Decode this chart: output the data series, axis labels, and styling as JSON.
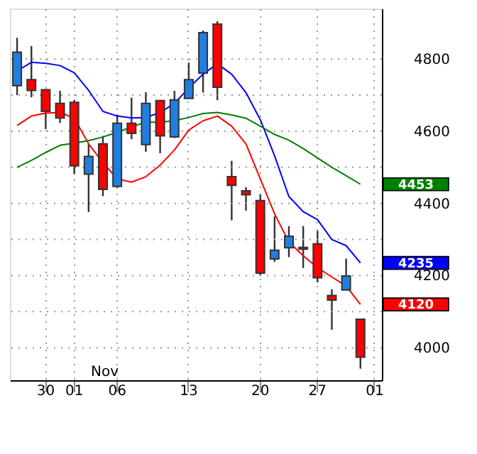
{
  "chart_data": {
    "type": "candlestick",
    "categories": [
      null,
      null,
      "30",
      null,
      "01",
      null,
      null,
      "06",
      null,
      null,
      null,
      null,
      "13",
      null,
      null,
      null,
      null,
      "20",
      null,
      null,
      null,
      "27",
      null,
      null,
      null,
      "01"
    ],
    "ohlc": [
      [
        4726,
        4859,
        4700,
        4819
      ],
      [
        4743,
        4836,
        4694,
        4713
      ],
      [
        4715,
        4715,
        4606,
        4655
      ],
      [
        4677,
        4712,
        4623,
        4637
      ],
      [
        4680,
        4687,
        4481,
        4504
      ],
      [
        4481,
        4565,
        4376,
        4530
      ],
      [
        4565,
        4587,
        4420,
        4439
      ],
      [
        4447,
        4646,
        4442,
        4622
      ],
      [
        4622,
        4693,
        4578,
        4594
      ],
      [
        4563,
        4708,
        4543,
        4677
      ],
      [
        4685,
        4686,
        4539,
        4587
      ],
      [
        4584,
        4712,
        4581,
        4687
      ],
      [
        4691,
        4790,
        4691,
        4743
      ],
      [
        4761,
        4879,
        4707,
        4873
      ],
      [
        4897,
        4905,
        4686,
        4722
      ],
      [
        4474,
        4518,
        4353,
        4450
      ],
      [
        4435,
        4445,
        4380,
        4424
      ],
      [
        4408,
        4425,
        4200,
        4207
      ],
      [
        4246,
        4364,
        4238,
        4270
      ],
      [
        4277,
        4337,
        4251,
        4309
      ],
      [
        4278,
        4337,
        4221,
        4273
      ],
      [
        4288,
        4324,
        4181,
        4194
      ],
      [
        4145,
        4162,
        4050,
        4132
      ],
      [
        4160,
        4247,
        4160,
        4199
      ],
      [
        4079,
        4079,
        3942,
        3974
      ],
      null
    ],
    "colors": [
      "#1e7fe0",
      "#ff0000",
      "#ff0000",
      "#ff0000",
      "#ff0000",
      "#1e7fe0",
      "#ff0000",
      "#1e7fe0",
      "#ff0000",
      "#1e7fe0",
      "#ff0000",
      "#1e7fe0",
      "#1e7fe0",
      "#1e7fe0",
      "#ff0000",
      "#ff0000",
      "#ff0000",
      "#ff0000",
      "#1e7fe0",
      "#1e7fe0",
      "#ff0000",
      "#ff0000",
      "#ff0000",
      "#1e7fe0",
      "#ff0000",
      null
    ],
    "series": [
      {
        "type": "line",
        "color": "#0000ff",
        "values": [
          4767,
          4791,
          4788,
          4782,
          4762,
          4713,
          4655,
          4642,
          4637,
          4638,
          4652,
          4677,
          4720,
          4758,
          4787,
          4758,
          4707,
          4632,
          4532,
          4419,
          4377,
          4355,
          4300,
          4283,
          4235,
          null
        ]
      },
      {
        "type": "line",
        "color": "#ff0000",
        "values": [
          4616,
          4642,
          4650,
          4652,
          4636,
          4565,
          4513,
          4468,
          4459,
          4474,
          4506,
          4548,
          4603,
          4629,
          4642,
          4614,
          4565,
          4468,
          4371,
          4293,
          4255,
          4222,
          4196,
          4171,
          4120,
          null
        ]
      },
      {
        "type": "line",
        "color": "#008000",
        "values": [
          4500,
          4519,
          4541,
          4561,
          4567,
          4574,
          4584,
          4597,
          4612,
          4625,
          4625,
          4629,
          4638,
          4649,
          4652,
          4645,
          4636,
          4614,
          4591,
          4575,
          4552,
          4526,
          4500,
          4477,
          4453,
          null
        ]
      }
    ],
    "ylim": [
      3910,
      4940
    ],
    "yticks": [
      4000,
      {
        "value": 4100,
        "label": null
      },
      4200,
      {
        "value": 4300,
        "label": null
      },
      4400,
      {
        "value": 4500,
        "label": null
      },
      4600,
      {
        "value": 4700,
        "label": null
      },
      4800
    ],
    "grid": true,
    "annotations": [
      "4235",
      "4120",
      "4453",
      "Nov"
    ]
  }
}
